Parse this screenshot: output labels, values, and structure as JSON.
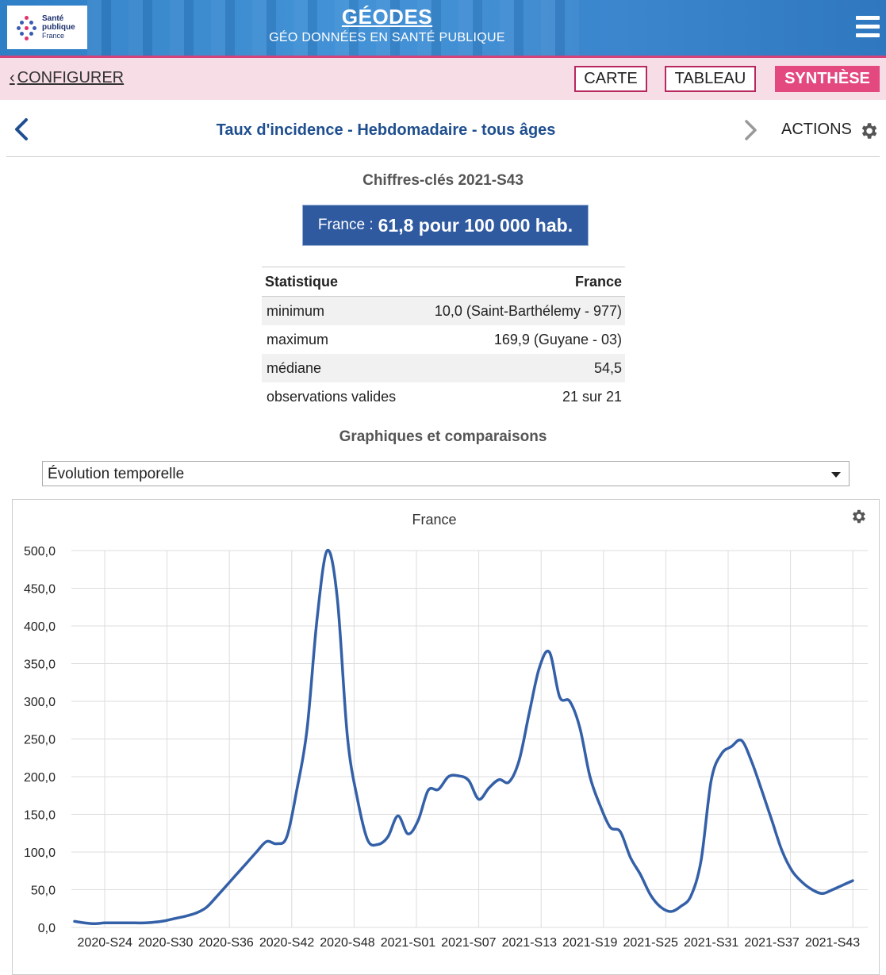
{
  "header": {
    "logo": {
      "line1": "Santé",
      "line2": "publique",
      "line3": "France"
    },
    "brand_title": "GÉODES",
    "brand_subtitle": "GÉO DONNÉES EN SANTÉ PUBLIQUE",
    "menu_icon": "hamburger-icon"
  },
  "nav": {
    "configure_label": "CONFIGURER",
    "tabs": [
      {
        "label": "CARTE",
        "active": false
      },
      {
        "label": "TABLEAU",
        "active": false
      },
      {
        "label": "SYNTHÈSE",
        "active": true
      }
    ]
  },
  "title_row": {
    "title": "Taux d'incidence - Hebdomadaire - tous âges",
    "actions_label": "ACTIONS"
  },
  "key_figures": {
    "heading": "Chiffres-clés 2021-S43",
    "label": "France :",
    "value": "61,8 pour 100 000 hab."
  },
  "stats_table": {
    "headers": [
      "Statistique",
      "France"
    ],
    "rows": [
      [
        "minimum",
        "10,0 (Saint-Barthélemy - 977)"
      ],
      [
        "maximum",
        "169,9 (Guyane - 03)"
      ],
      [
        "médiane",
        "54,5"
      ],
      [
        "observations valides",
        "21 sur 21"
      ]
    ]
  },
  "graphs": {
    "heading": "Graphiques et comparaisons",
    "select_value": "Évolution temporelle"
  },
  "chart_data": {
    "type": "line",
    "title": "France",
    "xlabel": "",
    "ylabel": "",
    "ylim": [
      0,
      500
    ],
    "yticks": [
      "0,0",
      "50,0",
      "100,0",
      "150,0",
      "200,0",
      "250,0",
      "300,0",
      "350,0",
      "400,0",
      "450,0",
      "500,0"
    ],
    "xticks": [
      "2020-S24",
      "2020-S30",
      "2020-S36",
      "2020-S42",
      "2020-S48",
      "2021-S01",
      "2021-S07",
      "2021-S13",
      "2021-S19",
      "2021-S25",
      "2021-S31",
      "2021-S37",
      "2021-S43"
    ],
    "grid": true,
    "color": "#3460a8",
    "series": [
      {
        "name": "France",
        "values": [
          8,
          6,
          5,
          6,
          6,
          6,
          6,
          6,
          7,
          9,
          12,
          15,
          19,
          26,
          40,
          55,
          70,
          85,
          100,
          114,
          111,
          120,
          183,
          262,
          410,
          500,
          437,
          253,
          170,
          116,
          110,
          120,
          148,
          124,
          142,
          182,
          183,
          200,
          201,
          195,
          170,
          185,
          196,
          193,
          222,
          285,
          345,
          365,
          306,
          300,
          265,
          200,
          162,
          133,
          127,
          93,
          70,
          43,
          27,
          21,
          28,
          42,
          89,
          195,
          230,
          240,
          248,
          220,
          182,
          142,
          102,
          75,
          60,
          50,
          45,
          50,
          56,
          62
        ]
      }
    ]
  }
}
